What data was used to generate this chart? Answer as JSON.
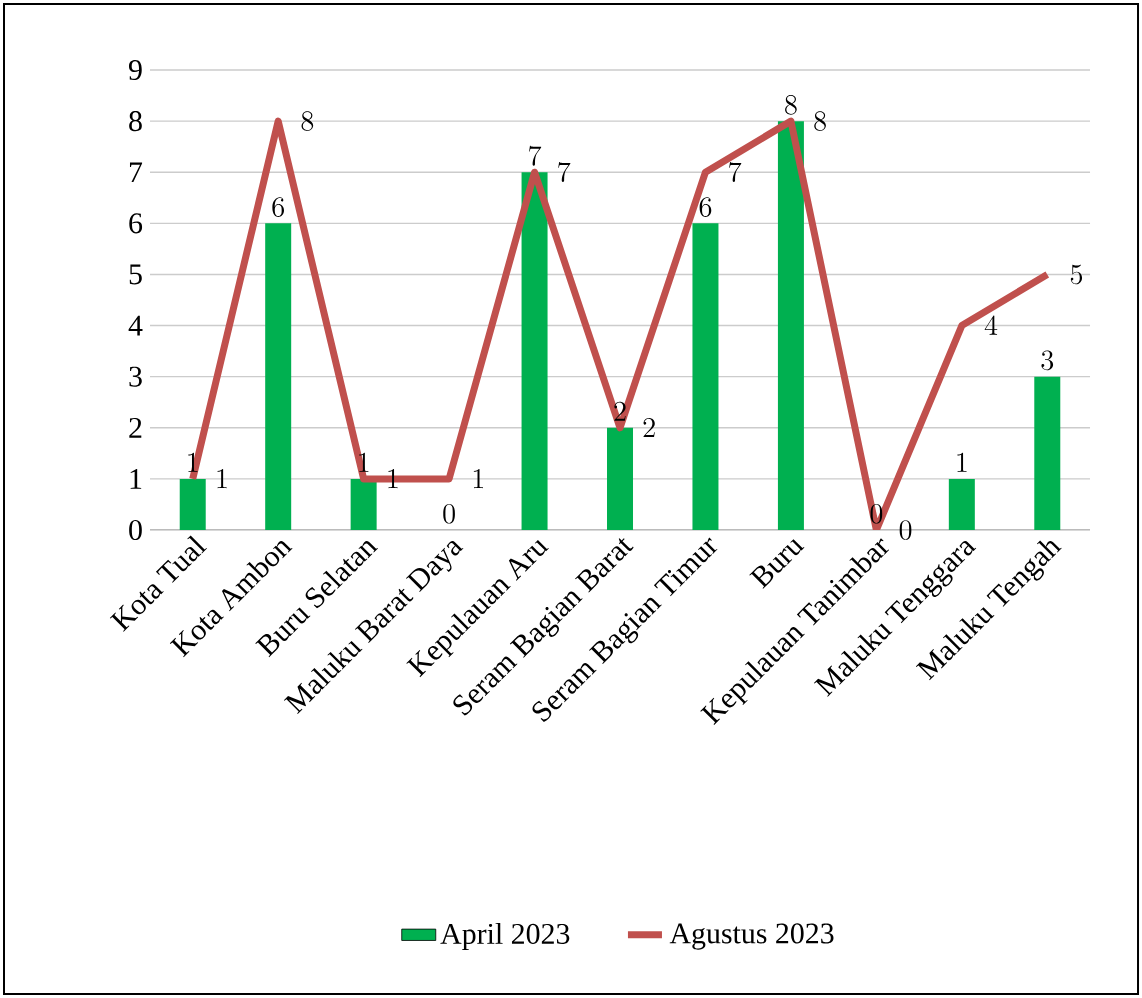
{
  "chart_data": {
    "type": "bar",
    "categories": [
      "Kota Tual",
      "Kota Ambon",
      "Buru Selatan",
      "Maluku Barat Daya",
      "Kepulauan Aru",
      "Seram Bagian Barat",
      "Seram Bagian Timur",
      "Buru",
      "Kepulauan Tanimbar",
      "Maluku Tenggara",
      "Maluku Tengah"
    ],
    "series": [
      {
        "name": "April 2023",
        "color": "#00b050",
        "values": [
          1,
          6,
          1,
          0,
          7,
          2,
          6,
          8,
          0,
          1,
          3
        ]
      },
      {
        "name": "Agustus 2023",
        "type": "line",
        "color": "#c0504d",
        "values": [
          1,
          8,
          1,
          1,
          7,
          2,
          7,
          8,
          0,
          4,
          5
        ]
      }
    ],
    "ylim": [
      0,
      9
    ],
    "yticks": [
      0,
      1,
      2,
      3,
      4,
      5,
      6,
      7,
      8,
      9
    ],
    "grid": "y",
    "legend": "bottom",
    "data_labels": true
  }
}
